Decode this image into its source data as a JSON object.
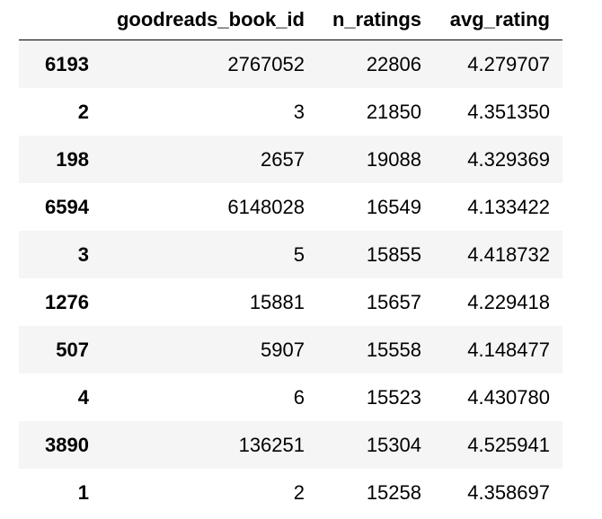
{
  "table": {
    "columns": [
      "",
      "goodreads_book_id",
      "n_ratings",
      "avg_rating"
    ],
    "rows": [
      {
        "index": "6193",
        "goodreads_book_id": "2767052",
        "n_ratings": "22806",
        "avg_rating": "4.279707"
      },
      {
        "index": "2",
        "goodreads_book_id": "3",
        "n_ratings": "21850",
        "avg_rating": "4.351350"
      },
      {
        "index": "198",
        "goodreads_book_id": "2657",
        "n_ratings": "19088",
        "avg_rating": "4.329369"
      },
      {
        "index": "6594",
        "goodreads_book_id": "6148028",
        "n_ratings": "16549",
        "avg_rating": "4.133422"
      },
      {
        "index": "3",
        "goodreads_book_id": "5",
        "n_ratings": "15855",
        "avg_rating": "4.418732"
      },
      {
        "index": "1276",
        "goodreads_book_id": "15881",
        "n_ratings": "15657",
        "avg_rating": "4.229418"
      },
      {
        "index": "507",
        "goodreads_book_id": "5907",
        "n_ratings": "15558",
        "avg_rating": "4.148477"
      },
      {
        "index": "4",
        "goodreads_book_id": "6",
        "n_ratings": "15523",
        "avg_rating": "4.430780"
      },
      {
        "index": "3890",
        "goodreads_book_id": "136251",
        "n_ratings": "15304",
        "avg_rating": "4.525941"
      },
      {
        "index": "1",
        "goodreads_book_id": "2",
        "n_ratings": "15258",
        "avg_rating": "4.358697"
      }
    ]
  },
  "colors": {
    "stripe": "#f5f5f5",
    "background": "#ffffff",
    "text": "#000000",
    "header_rule": "#000000"
  }
}
